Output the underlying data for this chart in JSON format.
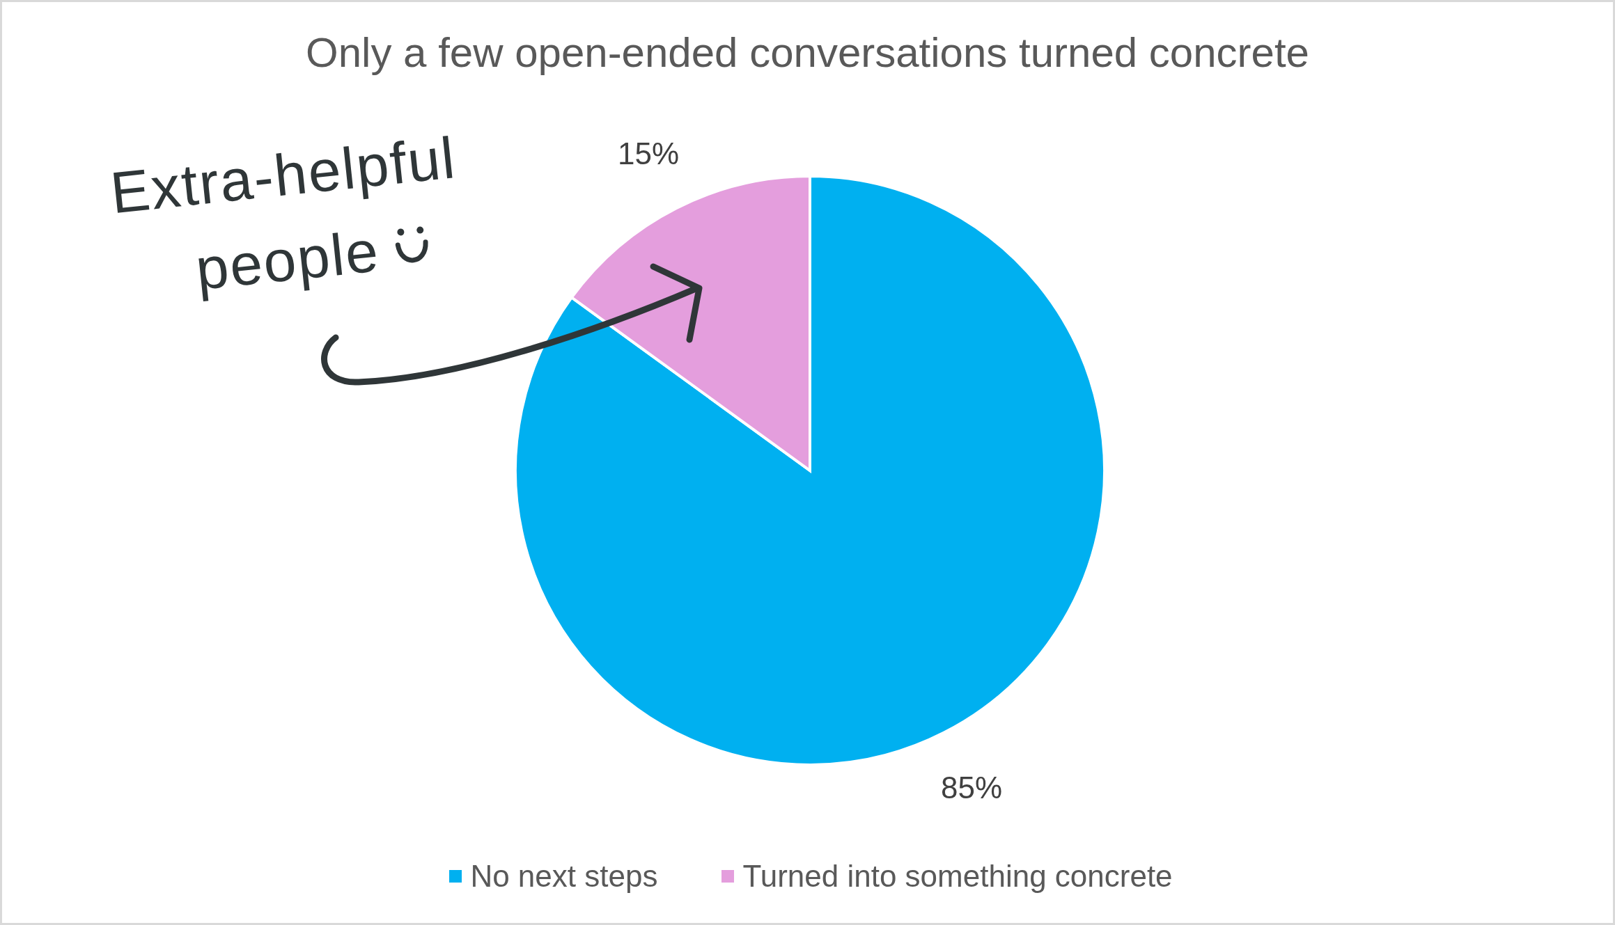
{
  "chart_data": {
    "type": "pie",
    "title": "Only a few open-ended conversations turned concrete",
    "categories": [
      "No next steps",
      "Turned into something concrete"
    ],
    "values": [
      85,
      15
    ],
    "value_labels": [
      "85%",
      "15%"
    ],
    "colors": [
      "#00b0f0",
      "#e49edd"
    ],
    "legend": "bottom",
    "annotations": [
      "Extra-helpful people"
    ]
  }
}
